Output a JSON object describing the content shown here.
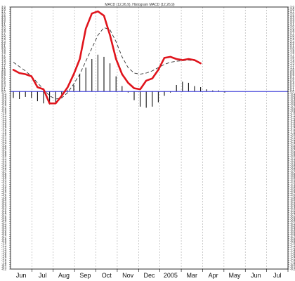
{
  "chart_data": {
    "type": "line",
    "title": "MACD (12,26,9), Histogram MACD (12,26,9)",
    "x_labels": [
      "Jun",
      "Jul",
      "Aug",
      "Sep",
      "Oct",
      "Nov",
      "Dec",
      "2005",
      "Mar",
      "Apr",
      "May",
      "Jun",
      "Jul"
    ],
    "x": [
      0,
      1,
      2,
      3,
      4,
      5,
      6,
      7,
      8,
      9,
      10,
      11,
      12,
      13,
      14,
      15,
      16,
      17,
      18,
      19,
      20,
      21,
      22,
      23,
      24,
      25,
      26,
      27,
      28,
      29,
      30,
      31,
      32,
      33,
      34,
      35,
      36,
      37,
      38,
      39,
      40,
      41,
      42,
      43,
      44,
      45
    ],
    "ylim": [
      -8.2,
      3.9
    ],
    "y_tick_step": 0.1,
    "zero_line_value": 0,
    "grid": "vertical dashed",
    "colors": {
      "macd": "#e0141c",
      "signal": "#333333",
      "histogram": "#111111",
      "zero_line": "#2b2bd6",
      "grid": "#aaaaaa",
      "axis": "#000000"
    },
    "series": [
      {
        "key": "macd",
        "style": "thick solid red",
        "values": [
          1.0,
          0.85,
          0.8,
          0.7,
          0.2,
          0.1,
          -0.55,
          -0.55,
          -0.2,
          0.2,
          0.8,
          1.5,
          2.9,
          3.6,
          3.7,
          3.5,
          2.6,
          1.5,
          0.8,
          0.4,
          0.15,
          0.1,
          0.5,
          0.6,
          1.0,
          1.55,
          1.6,
          1.5,
          1.45,
          1.5,
          1.45,
          1.3,
          null,
          null,
          null,
          null,
          null,
          null,
          null,
          null,
          null,
          null,
          null,
          null,
          null,
          null
        ]
      },
      {
        "key": "signal",
        "style": "dashed",
        "values": [
          1.35,
          1.15,
          0.95,
          0.7,
          0.4,
          0.1,
          -0.2,
          -0.35,
          -0.3,
          -0.05,
          0.35,
          0.8,
          1.4,
          2.0,
          2.6,
          2.95,
          2.85,
          2.3,
          1.6,
          1.1,
          0.85,
          0.8,
          0.85,
          0.95,
          1.1,
          1.25,
          1.35,
          1.4,
          1.42,
          1.45,
          1.42,
          null,
          null,
          null,
          null,
          null,
          null,
          null,
          null,
          null,
          null,
          null,
          null,
          null,
          null,
          null
        ]
      },
      {
        "key": "histogram",
        "style": "vertical bars",
        "values": [
          -0.3,
          -0.35,
          -0.25,
          -0.3,
          -0.45,
          -0.55,
          -0.6,
          -0.5,
          -0.15,
          0.05,
          0.3,
          0.8,
          1.1,
          1.5,
          1.7,
          1.6,
          1.3,
          0.7,
          0.25,
          -0.05,
          -0.4,
          -0.7,
          -0.75,
          -0.7,
          -0.5,
          -0.2,
          -0.05,
          0.3,
          0.45,
          0.4,
          0.25,
          0.2,
          0.1,
          0.05,
          0.05,
          -0.05,
          null,
          null,
          null,
          null,
          null,
          null,
          null,
          null,
          null,
          null
        ]
      }
    ]
  }
}
